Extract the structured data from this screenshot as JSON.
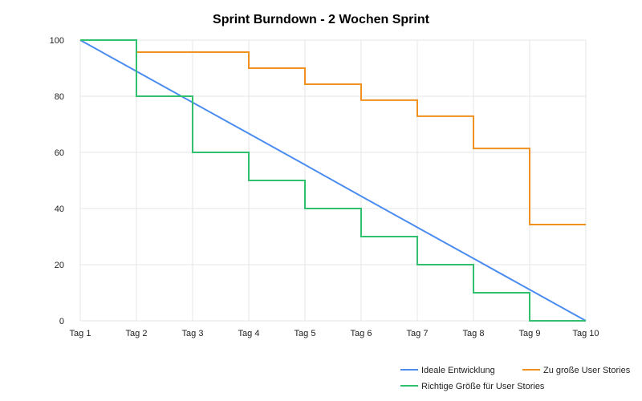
{
  "chart_data": {
    "type": "line",
    "title": "Sprint Burndown - 2 Wochen Sprint",
    "xlabel": "",
    "ylabel": "",
    "categories": [
      "Tag 1",
      "Tag 2",
      "Tag 3",
      "Tag 4",
      "Tag 5",
      "Tag 6",
      "Tag 7",
      "Tag 8",
      "Tag 9",
      "Tag 10"
    ],
    "ylim": [
      0,
      100
    ],
    "yticks": [
      0,
      20,
      40,
      60,
      80,
      100
    ],
    "grid": true,
    "legend_position": "bottom-right",
    "series": [
      {
        "name": "Ideale Entwicklung",
        "color": "#4a8cf0",
        "step": false,
        "values": [
          100,
          88.9,
          77.8,
          66.7,
          55.6,
          44.4,
          33.3,
          22.2,
          11.1,
          0
        ]
      },
      {
        "name": "Zu große User Stories",
        "color": "#f0901e",
        "step": true,
        "values": [
          100,
          95.7,
          95.7,
          90.0,
          84.3,
          78.6,
          72.9,
          61.4,
          34.3,
          34.3
        ]
      },
      {
        "name": "Richtige Größe für User Stories",
        "color": "#30c06e",
        "step": true,
        "values": [
          100,
          80,
          60,
          50,
          40,
          30,
          20,
          10,
          0,
          0
        ]
      }
    ]
  }
}
